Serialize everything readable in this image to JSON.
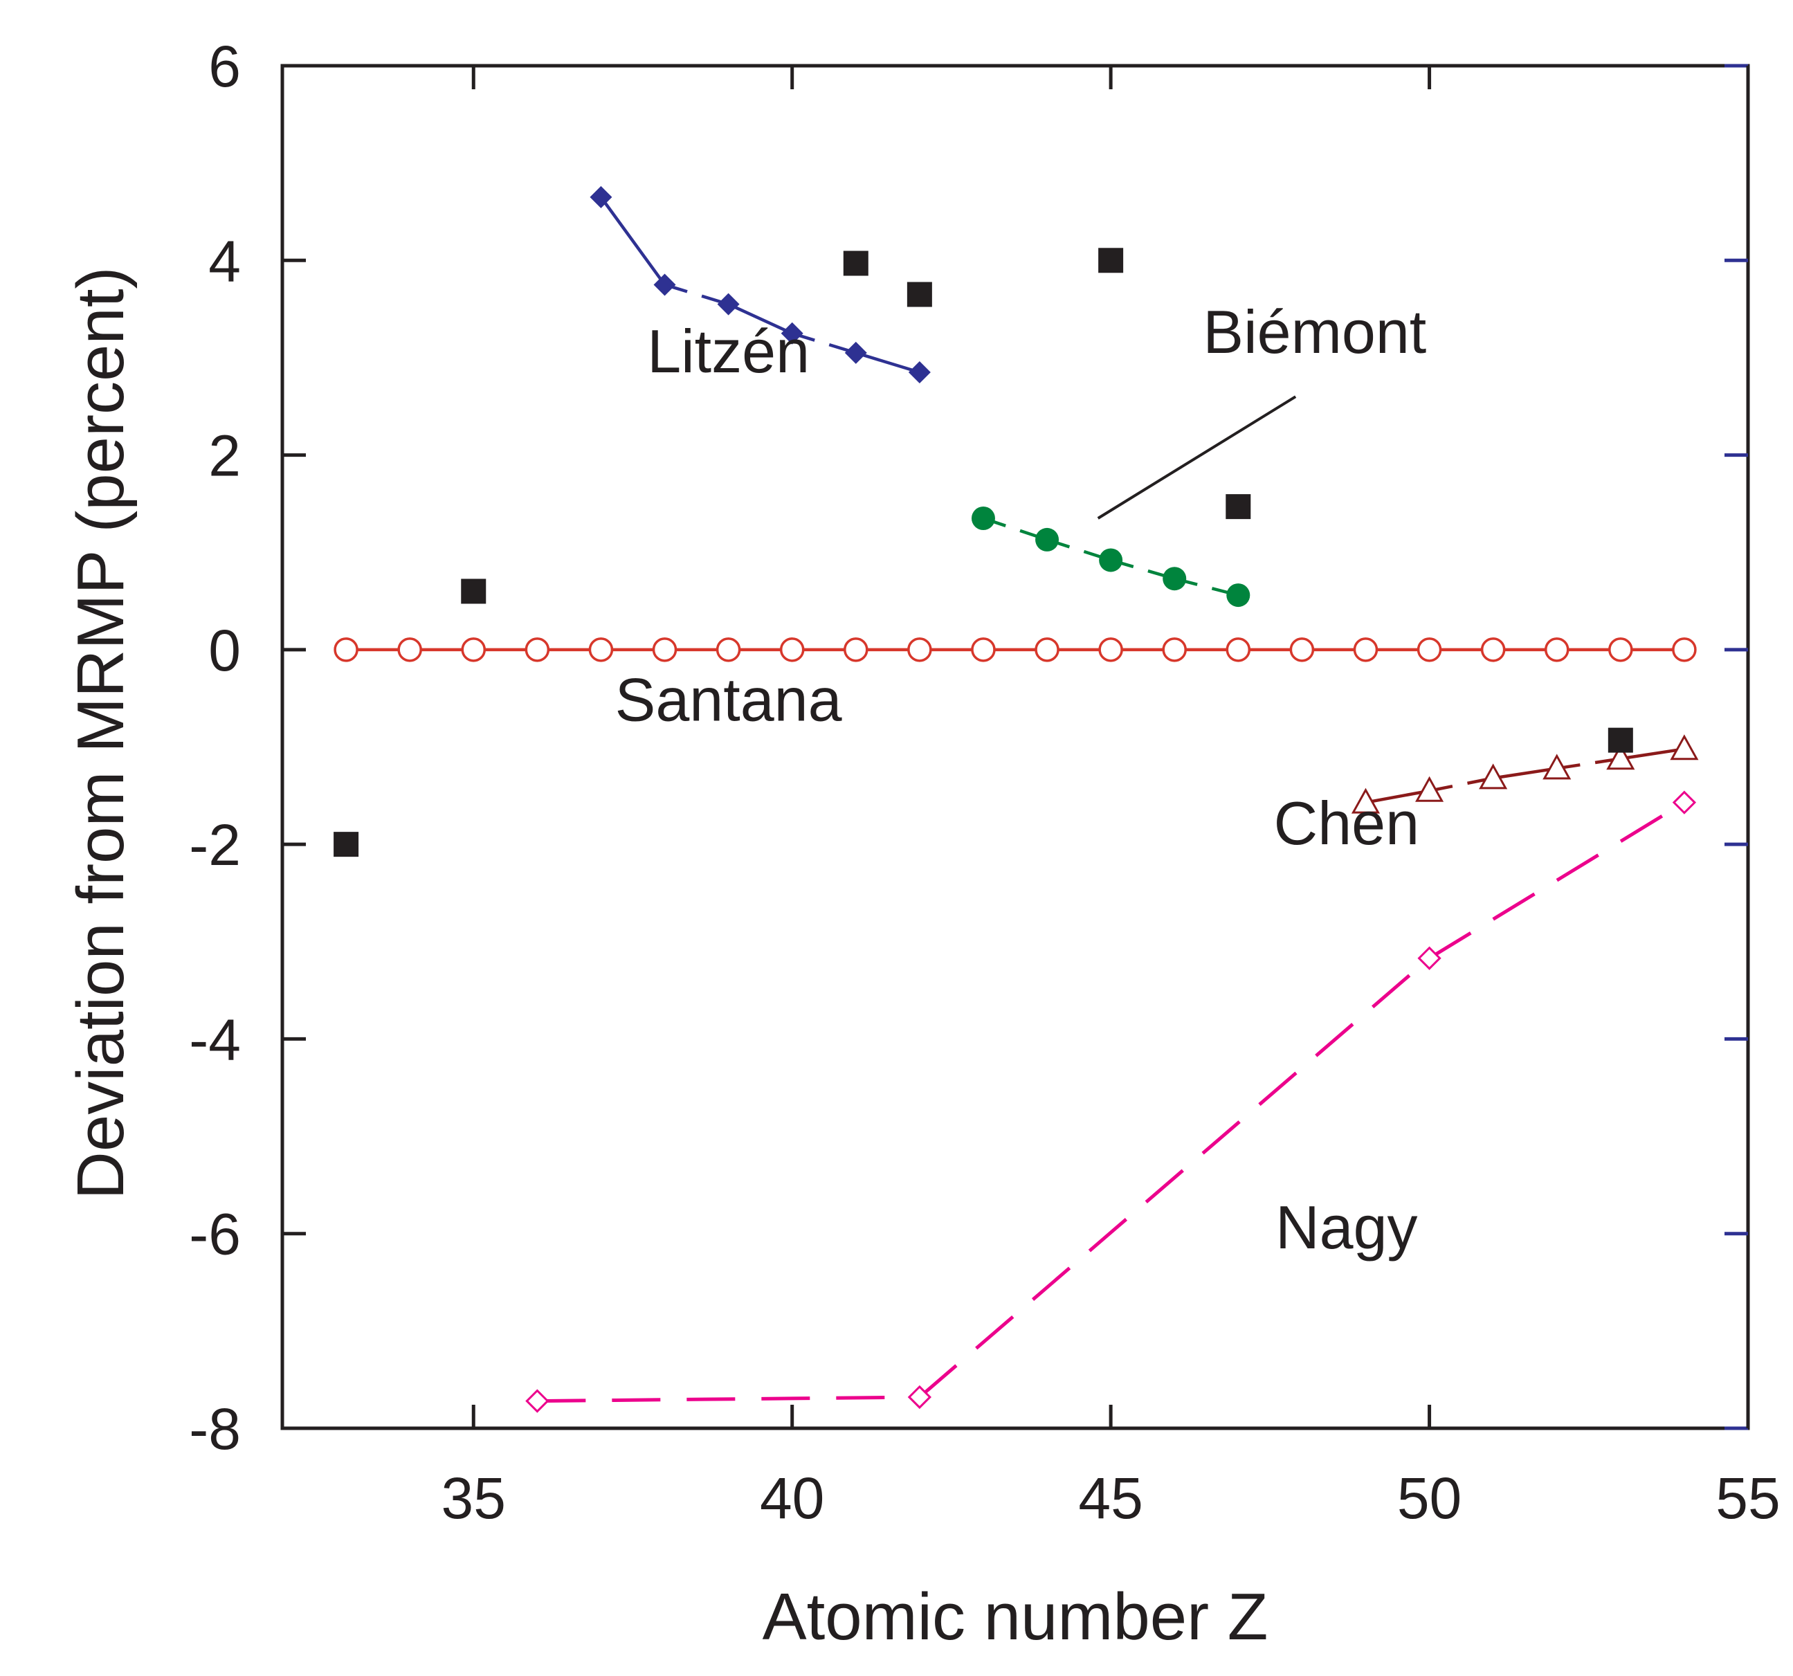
{
  "chart_data": {
    "type": "line",
    "title": "",
    "xlabel": "Atomic number Z",
    "ylabel": "Deviation from MRMP (percent)",
    "xlim": [
      32,
      55
    ],
    "ylim": [
      -8,
      6
    ],
    "xticks": [
      35,
      40,
      45,
      50,
      55
    ],
    "yticks": [
      -8,
      -6,
      -4,
      -2,
      0,
      2,
      4,
      6
    ],
    "grid": false,
    "series": [
      {
        "name": "Santana",
        "color": "#d7372b",
        "marker": "open-circle",
        "line": "solid",
        "x": [
          33,
          34,
          35,
          36,
          37,
          38,
          39,
          40,
          41,
          42,
          43,
          44,
          45,
          46,
          47,
          48,
          49,
          50,
          51,
          52,
          53,
          54
        ],
        "y": [
          0,
          0,
          0,
          0,
          0,
          0,
          0,
          0,
          0,
          0,
          0,
          0,
          0,
          0,
          0,
          0,
          0,
          0,
          0,
          0,
          0,
          0
        ]
      },
      {
        "name": "Litzén",
        "color": "#2e3192",
        "marker": "filled-diamond",
        "line": "mixed",
        "x": [
          37,
          38,
          39,
          40,
          41,
          42
        ],
        "y": [
          4.65,
          3.75,
          3.55,
          3.25,
          3.05,
          2.85
        ]
      },
      {
        "name": "Biémont",
        "color": "#00843d",
        "marker": "filled-circle",
        "line": "dashed",
        "x": [
          43,
          44,
          45,
          46,
          47
        ],
        "y": [
          1.35,
          1.13,
          0.92,
          0.73,
          0.56
        ]
      },
      {
        "name": "Chen",
        "color": "#8b1a1a",
        "marker": "open-triangle",
        "line": "mixed",
        "x": [
          49,
          50,
          51,
          52,
          53,
          54
        ],
        "y": [
          -1.57,
          -1.45,
          -1.32,
          -1.22,
          -1.12,
          -1.02
        ]
      },
      {
        "name": "Nagy",
        "color": "#ec008c",
        "marker": "open-diamond",
        "line": "long-dashed",
        "x": [
          36,
          42,
          50,
          54
        ],
        "y": [
          -7.72,
          -7.68,
          -3.17,
          -1.57
        ]
      },
      {
        "name": "squares",
        "color": "#231f20",
        "marker": "filled-square",
        "line": "none",
        "x": [
          33,
          35,
          41,
          42,
          45,
          47,
          53
        ],
        "y": [
          -2.0,
          0.6,
          3.97,
          3.65,
          4.0,
          1.47,
          -0.93
        ]
      }
    ],
    "annotations": [
      {
        "text": "Litzén",
        "x": 39.0,
        "y": 2.85
      },
      {
        "text": "Biémont",
        "x": 48.2,
        "y": 3.05
      },
      {
        "text": "Santana",
        "x": 39.0,
        "y": -0.73
      },
      {
        "text": "Chen",
        "x": 48.7,
        "y": -2.0
      },
      {
        "text": "Nagy",
        "x": 48.7,
        "y": -6.15
      }
    ],
    "pointer": {
      "from": [
        47.9,
        2.6
      ],
      "to": [
        44.8,
        1.35
      ]
    }
  }
}
